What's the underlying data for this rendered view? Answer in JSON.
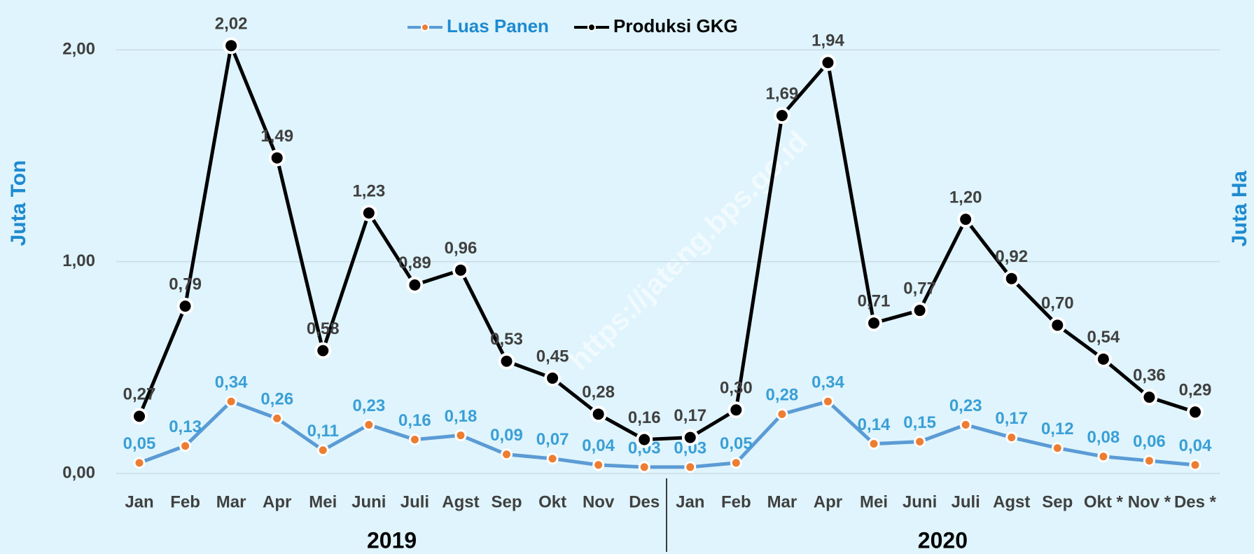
{
  "chart_data": {
    "type": "line",
    "categories": [
      "Jan",
      "Feb",
      "Mar",
      "Apr",
      "Mei",
      "Juni",
      "Juli",
      "Agst",
      "Sep",
      "Okt",
      "Nov",
      "Des",
      "Jan",
      "Feb",
      "Mar",
      "Apr",
      "Mei",
      "Juni",
      "Juli",
      "Agst",
      "Sep",
      "Okt *",
      "Nov *",
      "Des *"
    ],
    "groups": [
      "2019",
      "2020"
    ],
    "y_label": "Juta Ton",
    "y2_label": "Juta Ha",
    "watermark": "https://jateng.bps.go.id",
    "ylim": [
      0,
      2.1
    ],
    "yticks": [
      {
        "value": 0,
        "label": "0,00"
      },
      {
        "value": 1,
        "label": "1,00"
      },
      {
        "value": 2,
        "label": "2,00"
      }
    ],
    "grid": true,
    "legend": "top",
    "series": [
      {
        "name": "Luas Panen",
        "color": "#5b9bd5",
        "marker_color": "#ed7d31",
        "label_color": "#3a9fd6",
        "values": [
          0.05,
          0.13,
          0.34,
          0.26,
          0.11,
          0.23,
          0.16,
          0.18,
          0.09,
          0.07,
          0.04,
          0.03,
          0.03,
          0.05,
          0.28,
          0.34,
          0.14,
          0.15,
          0.23,
          0.17,
          0.12,
          0.08,
          0.06,
          0.04
        ],
        "value_labels": [
          "0,05",
          "0,13",
          "0,34",
          "0,26",
          "0,11",
          "0,23",
          "0,16",
          "0,18",
          "0,09",
          "0,07",
          "0,04",
          "0,03",
          "0,03",
          "0,05",
          "0,28",
          "0,34",
          "0,14",
          "0,15",
          "0,23",
          "0,17",
          "0,12",
          "0,08",
          "0,06",
          "0,04"
        ]
      },
      {
        "name": "Produksi GKG",
        "color": "#000000",
        "marker_color": "#000000",
        "label_color": "#404040",
        "values": [
          0.27,
          0.79,
          2.02,
          1.49,
          0.58,
          1.23,
          0.89,
          0.96,
          0.53,
          0.45,
          0.28,
          0.16,
          0.17,
          0.3,
          1.69,
          1.94,
          0.71,
          0.77,
          1.2,
          0.92,
          0.7,
          0.54,
          0.36,
          0.29
        ],
        "value_labels": [
          "0,27",
          "0,79",
          "2,02",
          "1,49",
          "0,58",
          "1,23",
          "0,89",
          "0,96",
          "0,53",
          "0,45",
          "0,28",
          "0,16",
          "0,17",
          "0,30",
          "1,69",
          "1,94",
          "0,71",
          "0,77",
          "1,20",
          "0,92",
          "0,70",
          "0,54",
          "0,36",
          "0,29"
        ]
      }
    ]
  }
}
